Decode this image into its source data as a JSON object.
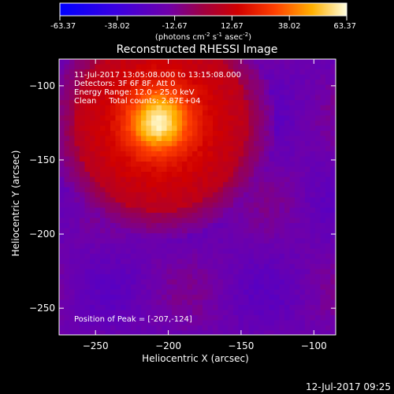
{
  "chart_data": {
    "type": "heatmap",
    "title": "Reconstructed RHESSI Image",
    "xlabel": "Heliocentric X (arcsec)",
    "ylabel": "Heliocentric Y (arcsec)",
    "xlim": [
      -275,
      -85
    ],
    "ylim": [
      -268,
      -82
    ],
    "x_ticks": [
      -250,
      -200,
      -150,
      -100
    ],
    "x_tick_labels": [
      "−250",
      "−200",
      "−150",
      "−100"
    ],
    "y_ticks": [
      -100,
      -150,
      -200,
      -250
    ],
    "y_tick_labels": [
      "−100",
      "−150",
      "−200",
      "−250"
    ],
    "colorbar": {
      "min": -63.37,
      "max": 63.37,
      "ticks": [
        -63.37,
        -38.02,
        -12.67,
        12.67,
        38.02,
        63.37
      ],
      "tick_labels": [
        "-63.37",
        "-38.02",
        "-12.67",
        "12.67",
        "38.02",
        "63.37"
      ],
      "unit_label_parts": [
        "(photons cm",
        "-2",
        " s",
        "-1",
        " asec",
        "-2",
        ")"
      ]
    },
    "info_lines": [
      "11-Jul-2017 13:05:08.000 to 13:15:08.000",
      "Detectors: 3F 6F 8F, Att 0",
      "Energy Range: 12.0 - 25.0 keV",
      "Clean     Total counts: 2.87E+04"
    ],
    "peak": {
      "x": -207,
      "y": -124
    },
    "peak_label": "Position of Peak = [-207,-124]",
    "source": {
      "center_x": -205,
      "center_y": -125,
      "peak_value": 63.37,
      "radius_arcsec": 60
    }
  },
  "footer": {
    "timestamp": "12-Jul-2017 09:25"
  },
  "colors": {
    "background": "#000000",
    "text": "#ffffff",
    "colormap": [
      "#0000ff",
      "#5a00c8",
      "#8c0080",
      "#c80000",
      "#ff5a00",
      "#ffc000",
      "#ffffff"
    ]
  }
}
